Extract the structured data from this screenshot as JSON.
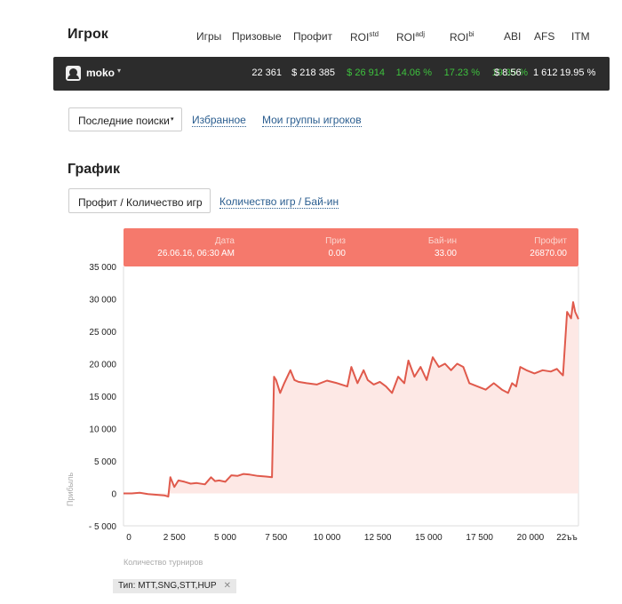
{
  "header": {
    "title": "Игрок",
    "columns": [
      {
        "label": "Игры"
      },
      {
        "label": "Призовые"
      },
      {
        "label": "Профит"
      },
      {
        "label": "ROI",
        "sup": "std"
      },
      {
        "label": "ROI",
        "sup": "adj"
      },
      {
        "label": "ROI",
        "sup": "bi"
      },
      {
        "label": "ABI"
      },
      {
        "label": "AFS"
      },
      {
        "label": "ITM"
      }
    ]
  },
  "player": {
    "name": "moko",
    "caret": "▾",
    "values": [
      "22 361",
      "$ 218 385",
      "$ 26 914",
      "14.06 %",
      "17.23 %",
      "19.35 %",
      "$ 8.56",
      "1 612",
      "19.95 %"
    ],
    "green_color": "#3ec23e"
  },
  "nav": {
    "dropdown_label": "Последние поиски",
    "dropdown_caret": "▾",
    "favorites": "Избранное",
    "groups": "Мои группы игроков"
  },
  "graph": {
    "title": "График",
    "tab_active": "Профит / Количество игр",
    "tab_link": "Количество игр / Бай-ин"
  },
  "tooltip": {
    "date_label": "Дата",
    "date_value": "26.06.16, 06:30 AM",
    "prize_label": "Приз",
    "prize_value": "0.00",
    "buyin_label": "Бай-ин",
    "buyin_value": "33.00",
    "profit_label": "Профит",
    "profit_value": "26870.00",
    "color": "#f5796c"
  },
  "filter": {
    "tag": "Тип: MTT,SNG,STT,HUP",
    "close": "✕"
  },
  "chart_data": {
    "type": "area",
    "xlabel": "Количество турниров",
    "ylabel": "Прибыль",
    "xlim": [
      0,
      22361
    ],
    "ylim": [
      -5000,
      35000
    ],
    "x_ticks": [
      "0",
      "2 500",
      "5 000",
      "7 500",
      "10 000",
      "12 500",
      "15 000",
      "17 500",
      "20 000",
      "22ъъ"
    ],
    "y_ticks": [
      "35 000",
      "30 000",
      "25 000",
      "20 000",
      "15 000",
      "10 000",
      "5 000",
      "0",
      "- 5 000"
    ],
    "y_tick_values": [
      35000,
      30000,
      25000,
      20000,
      15000,
      10000,
      5000,
      0,
      -5000
    ],
    "x_tick_values": [
      0,
      2500,
      5000,
      7500,
      10000,
      12500,
      15000,
      17500,
      20000,
      22361
    ],
    "line_color": "#e05a4c",
    "fill_color": "#fde8e5",
    "series": [
      {
        "x": [
          0,
          400,
          800,
          1200,
          1600,
          2000,
          2200,
          2300,
          2500,
          2700,
          3000,
          3300,
          3600,
          4000,
          4300,
          4500,
          4700,
          5000,
          5300,
          5600,
          5900,
          6200,
          6600,
          7000,
          7300,
          7400,
          7500,
          7700,
          7900,
          8200,
          8400,
          8600,
          9000,
          9500,
          10000,
          10500,
          11000,
          11200,
          11500,
          11800,
          12000,
          12300,
          12600,
          12900,
          13200,
          13500,
          13800,
          14000,
          14300,
          14600,
          14900,
          15200,
          15500,
          15800,
          16100,
          16400,
          16700,
          17000,
          17400,
          17800,
          18200,
          18600,
          18900,
          19100,
          19300,
          19500,
          19800,
          20200,
          20600,
          21000,
          21300,
          21500,
          21600,
          21800,
          22000,
          22100,
          22200,
          22361
        ],
        "y": [
          0,
          0,
          100,
          -100,
          -200,
          -300,
          -500,
          2500,
          1000,
          2000,
          1800,
          1500,
          1600,
          1400,
          2500,
          1900,
          2000,
          1800,
          2800,
          2700,
          3000,
          2900,
          2700,
          2600,
          2500,
          18000,
          17500,
          15500,
          17000,
          19000,
          17500,
          17200,
          17000,
          16800,
          17400,
          17000,
          16500,
          19500,
          17000,
          19000,
          17500,
          16800,
          17200,
          16500,
          15500,
          18000,
          17000,
          20500,
          18000,
          19500,
          17500,
          21000,
          19500,
          20000,
          19000,
          20000,
          19500,
          17000,
          16500,
          16000,
          17000,
          16000,
          15500,
          17000,
          16500,
          19500,
          19000,
          18500,
          19000,
          18800,
          19200,
          18500,
          18200,
          28000,
          27000,
          29500,
          28000,
          26870
        ]
      }
    ]
  }
}
